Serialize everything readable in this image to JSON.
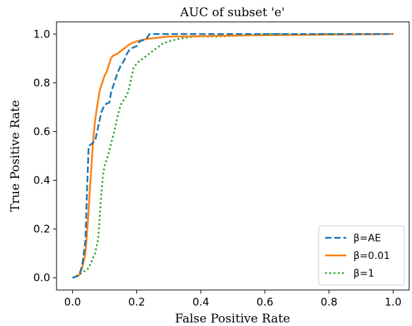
{
  "chart_data": {
    "type": "line",
    "title": "AUC of subset 'e'",
    "xlabel": "False Positive Rate",
    "ylabel": "True Positive Rate",
    "xlim": [
      -0.05,
      1.05
    ],
    "ylim": [
      -0.05,
      1.05
    ],
    "xticks": [
      0.0,
      0.2,
      0.4,
      0.6,
      0.8,
      1.0
    ],
    "yticks": [
      0.0,
      0.2,
      0.4,
      0.6,
      0.8,
      1.0
    ],
    "xtick_labels": [
      "0.0",
      "0.2",
      "0.4",
      "0.6",
      "0.8",
      "1.0"
    ],
    "ytick_labels": [
      "0.0",
      "0.2",
      "0.4",
      "0.6",
      "0.8",
      "1.0"
    ],
    "grid": false,
    "legend_position": "lower-right",
    "series": [
      {
        "name": "β=AE",
        "color": "#1f77b4",
        "linestyle": "dashed",
        "points": [
          [
            0.0,
            0.0
          ],
          [
            0.02,
            0.01
          ],
          [
            0.03,
            0.05
          ],
          [
            0.04,
            0.15
          ],
          [
            0.045,
            0.35
          ],
          [
            0.05,
            0.54
          ],
          [
            0.06,
            0.55
          ],
          [
            0.07,
            0.56
          ],
          [
            0.075,
            0.59
          ],
          [
            0.08,
            0.62
          ],
          [
            0.085,
            0.65
          ],
          [
            0.09,
            0.68
          ],
          [
            0.1,
            0.71
          ],
          [
            0.115,
            0.72
          ],
          [
            0.12,
            0.76
          ],
          [
            0.13,
            0.8
          ],
          [
            0.14,
            0.84
          ],
          [
            0.15,
            0.87
          ],
          [
            0.16,
            0.89
          ],
          [
            0.17,
            0.92
          ],
          [
            0.18,
            0.94
          ],
          [
            0.2,
            0.95
          ],
          [
            0.21,
            0.97
          ],
          [
            0.23,
            0.98
          ],
          [
            0.24,
            1.0
          ],
          [
            0.34,
            1.0
          ],
          [
            0.53,
            1.0
          ],
          [
            1.0,
            1.0
          ]
        ]
      },
      {
        "name": "β=0.01",
        "color": "#ff7f0e",
        "linestyle": "solid",
        "points": [
          [
            0.0,
            0.0
          ],
          [
            0.02,
            0.01
          ],
          [
            0.03,
            0.04
          ],
          [
            0.04,
            0.1
          ],
          [
            0.045,
            0.18
          ],
          [
            0.05,
            0.28
          ],
          [
            0.055,
            0.38
          ],
          [
            0.06,
            0.48
          ],
          [
            0.065,
            0.58
          ],
          [
            0.07,
            0.64
          ],
          [
            0.075,
            0.69
          ],
          [
            0.08,
            0.73
          ],
          [
            0.085,
            0.77
          ],
          [
            0.09,
            0.79
          ],
          [
            0.095,
            0.81
          ],
          [
            0.1,
            0.83
          ],
          [
            0.105,
            0.84
          ],
          [
            0.11,
            0.86
          ],
          [
            0.115,
            0.88
          ],
          [
            0.12,
            0.9
          ],
          [
            0.125,
            0.91
          ],
          [
            0.14,
            0.92
          ],
          [
            0.16,
            0.94
          ],
          [
            0.18,
            0.96
          ],
          [
            0.2,
            0.97
          ],
          [
            0.23,
            0.98
          ],
          [
            0.3,
            0.99
          ],
          [
            0.35,
            0.99
          ],
          [
            0.55,
            0.995
          ],
          [
            1.0,
            1.0
          ]
        ]
      },
      {
        "name": "β=1",
        "color": "#2ca02c",
        "linestyle": "dotted",
        "points": [
          [
            0.0,
            0.0
          ],
          [
            0.03,
            0.02
          ],
          [
            0.05,
            0.04
          ],
          [
            0.06,
            0.07
          ],
          [
            0.07,
            0.1
          ],
          [
            0.08,
            0.16
          ],
          [
            0.085,
            0.25
          ],
          [
            0.09,
            0.35
          ],
          [
            0.095,
            0.42
          ],
          [
            0.1,
            0.46
          ],
          [
            0.11,
            0.5
          ],
          [
            0.12,
            0.55
          ],
          [
            0.13,
            0.6
          ],
          [
            0.14,
            0.66
          ],
          [
            0.15,
            0.71
          ],
          [
            0.16,
            0.73
          ],
          [
            0.17,
            0.75
          ],
          [
            0.175,
            0.77
          ],
          [
            0.18,
            0.8
          ],
          [
            0.185,
            0.83
          ],
          [
            0.19,
            0.86
          ],
          [
            0.2,
            0.88
          ],
          [
            0.22,
            0.9
          ],
          [
            0.24,
            0.92
          ],
          [
            0.26,
            0.94
          ],
          [
            0.28,
            0.96
          ],
          [
            0.3,
            0.97
          ],
          [
            0.33,
            0.98
          ],
          [
            0.38,
            0.99
          ],
          [
            0.45,
            0.99
          ],
          [
            0.55,
            0.995
          ],
          [
            0.6,
            1.0
          ],
          [
            1.0,
            1.0
          ]
        ]
      }
    ]
  }
}
